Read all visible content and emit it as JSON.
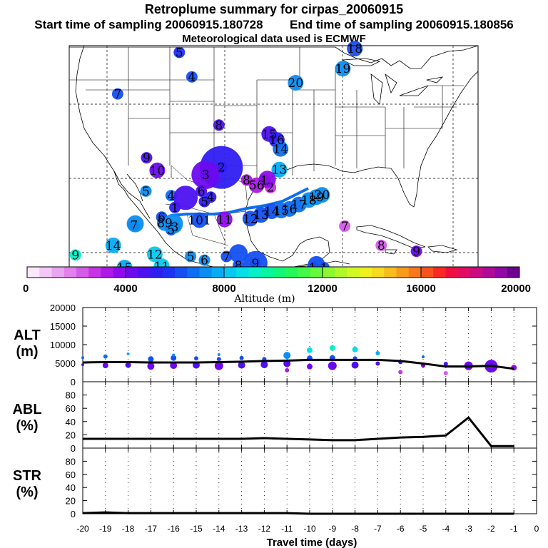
{
  "header": {
    "title": "Retroplume summary for cirpas_20060915",
    "start_label": "Start time of sampling 20060915.180728",
    "end_label": "End time of sampling 20060915.180856",
    "met_label": "Meteorological data used is ECMWF"
  },
  "colorbar": {
    "ticks": [
      "0",
      "4000",
      "8000",
      "12000",
      "16000",
      "20000"
    ],
    "label": "Altitude (m)",
    "range": [
      0,
      20000
    ],
    "colors": [
      "#fbe8fb",
      "#f4c8f6",
      "#eaa5f1",
      "#e081ed",
      "#d45ce9",
      "#c733e6",
      "#ad19e6",
      "#8e0ce9",
      "#6c0aee",
      "#4d11f0",
      "#2f1ef2",
      "#1d32f2",
      "#1450f0",
      "#0d6ef0",
      "#0a8ef2",
      "#08acf2",
      "#07c8f0",
      "#06dfe8",
      "#06f0c8",
      "#08f6a0",
      "#10f878",
      "#24f858",
      "#44f848",
      "#68f83c",
      "#8cf832",
      "#b0f82a",
      "#d2f824",
      "#eef020",
      "#f8da1e",
      "#f8bc1c",
      "#f89a1a",
      "#f8781c",
      "#f8541e",
      "#f82a24",
      "#f01040",
      "#e20c62",
      "#cc0a82",
      "#b00a98",
      "#9208a8",
      "#6c0490"
    ]
  },
  "map": {
    "labels": [
      {
        "t": "5",
        "lon": -112.5,
        "lat": 48.1,
        "c": "#1d32f2"
      },
      {
        "t": "4",
        "lon": -110.5,
        "lat": 44.8,
        "c": "#1450f0"
      },
      {
        "t": "18",
        "lon": -84.6,
        "lat": 48.6,
        "c": "#1450f0"
      },
      {
        "t": "19",
        "lon": -86.5,
        "lat": 45.9,
        "c": "#0a8ef2"
      },
      {
        "t": "20",
        "lon": -94,
        "lat": 44,
        "c": "#0a8ef2"
      },
      {
        "t": "7",
        "lon": -122.3,
        "lat": 42.5,
        "c": "#1450f0"
      },
      {
        "t": "8",
        "lon": -106.2,
        "lat": 38.3,
        "c": "#4d11f0"
      },
      {
        "t": "15",
        "lon": -98.2,
        "lat": 37.1,
        "c": "#4d11f0"
      },
      {
        "t": "16",
        "lon": -97,
        "lat": 36.3,
        "c": "#2f1ef2"
      },
      {
        "t": "14",
        "lon": -96.4,
        "lat": 35.1,
        "c": "#0d6ef0"
      },
      {
        "t": "13",
        "lon": -96.6,
        "lat": 32.3,
        "c": "#08acf2"
      },
      {
        "t": "9",
        "lon": -117.7,
        "lat": 33.9,
        "c": "#4d11f0"
      },
      {
        "t": "10",
        "lon": -116,
        "lat": 32.2,
        "c": "#6c0aee"
      },
      {
        "t": "2",
        "lon": -105.8,
        "lat": 32.6,
        "c": "#2f1ef2"
      },
      {
        "t": "3",
        "lon": -108.3,
        "lat": 31.6,
        "c": "#6c0aee"
      },
      {
        "t": "5",
        "lon": -117.8,
        "lat": 29.4,
        "c": "#0a8ef2"
      },
      {
        "t": "4",
        "lon": -113.8,
        "lat": 28.8,
        "c": "#0d6ef0"
      },
      {
        "t": "6",
        "lon": -109,
        "lat": 29.4,
        "c": "#4d11f0"
      },
      {
        "t": "5",
        "lon": -108.5,
        "lat": 28,
        "c": "#2f1ef2"
      },
      {
        "t": "4",
        "lon": -107.5,
        "lat": 28.6,
        "c": "#2f1ef2"
      },
      {
        "t": "8",
        "lon": -101.8,
        "lat": 30.9,
        "c": "#ad19e6"
      },
      {
        "t": "56",
        "lon": -100.2,
        "lat": 30.2,
        "c": "#ad19e6"
      },
      {
        "t": "1",
        "lon": -99,
        "lat": 30.9,
        "c": "#8e0ce9"
      },
      {
        "t": "2",
        "lon": -98,
        "lat": 29.9,
        "c": "#c733e6"
      },
      {
        "t": "7",
        "lon": -119.7,
        "lat": 24.8,
        "c": "#1450f0"
      },
      {
        "t": "89",
        "lon": -114.8,
        "lat": 25.1,
        "c": "#0a8ef2"
      },
      {
        "t": "101",
        "lon": -109.3,
        "lat": 25.5,
        "c": "#1450f0"
      },
      {
        "t": "11",
        "lon": -105.3,
        "lat": 25.6,
        "c": "#8e0ce9"
      },
      {
        "t": "12",
        "lon": -101.2,
        "lat": 25.7,
        "c": "#1450f0"
      },
      {
        "t": "13",
        "lon": -99.5,
        "lat": 26.2,
        "c": "#1450f0"
      },
      {
        "t": "14",
        "lon": -97.8,
        "lat": 26.7,
        "c": "#1450f0"
      },
      {
        "t": "15",
        "lon": -96.3,
        "lat": 26.8,
        "c": "#0d6ef0"
      },
      {
        "t": "16",
        "lon": -95,
        "lat": 27,
        "c": "#0d6ef0"
      },
      {
        "t": "17",
        "lon": -93.5,
        "lat": 27.6,
        "c": "#0d6ef0"
      },
      {
        "t": "18",
        "lon": -91.9,
        "lat": 28.2,
        "c": "#0a8ef2"
      },
      {
        "t": "19",
        "lon": -90.7,
        "lat": 28.6,
        "c": "#0a8ef2"
      },
      {
        "t": "20",
        "lon": -89.8,
        "lat": 28.9,
        "c": "#0a8ef2"
      },
      {
        "t": "6",
        "lon": -115.3,
        "lat": 25.9,
        "c": "#1450f0"
      },
      {
        "t": "1",
        "lon": -113.2,
        "lat": 27.2,
        "c": "#2f1ef2"
      },
      {
        "t": "5",
        "lon": -113.8,
        "lat": 24.2,
        "c": "#1450f0"
      },
      {
        "t": "3",
        "lon": -113.2,
        "lat": 24.6,
        "c": "#1450f0"
      },
      {
        "t": "7",
        "lon": -86.2,
        "lat": 24.7,
        "c": "#d45ce9"
      },
      {
        "t": "8",
        "lon": -80.4,
        "lat": 22.1,
        "c": "#d45ce9"
      },
      {
        "t": "9",
        "lon": -74.8,
        "lat": 21.3,
        "c": "#6c0aee"
      },
      {
        "t": "14",
        "lon": -123,
        "lat": 22.1,
        "c": "#08acf2"
      },
      {
        "t": "12",
        "lon": -116.4,
        "lat": 20.9,
        "c": "#07c8f0"
      },
      {
        "t": "15",
        "lon": -121.2,
        "lat": 19.1,
        "c": "#08acf2"
      },
      {
        "t": "11",
        "lon": -115.3,
        "lat": 19.3,
        "c": "#07c8f0"
      },
      {
        "t": "9",
        "lon": -129,
        "lat": 20.8,
        "c": "#06f0c8"
      },
      {
        "t": "5",
        "lon": -110.7,
        "lat": 20.6,
        "c": "#0a8ef2"
      },
      {
        "t": "6",
        "lon": -108.5,
        "lat": 20.1,
        "c": "#0a8ef2"
      },
      {
        "t": "7",
        "lon": -105,
        "lat": 20.6,
        "c": "#1450f0"
      },
      {
        "t": "8",
        "lon": -103.1,
        "lat": 19.4,
        "c": "#1450f0"
      },
      {
        "t": "9",
        "lon": -100.4,
        "lat": 19.7,
        "c": "#1450f0"
      },
      {
        "t": "1",
        "lon": -91.3,
        "lat": 19.1,
        "c": "#1450f0"
      },
      {
        "t": "1",
        "lon": -89.5,
        "lat": 19.1,
        "c": "#1450f0"
      }
    ]
  },
  "chart_data": [
    {
      "type": "scatter",
      "name": "ALT",
      "ylabel": "ALT (m)",
      "ylabel_lines": [
        "ALT",
        "(m)"
      ],
      "ylim": [
        0,
        20000
      ],
      "yticks": [
        "0",
        "5000",
        "10000",
        "15000",
        "20000"
      ],
      "xlim": [
        -20,
        0
      ],
      "line": {
        "x": [
          -20,
          -19,
          -18,
          -17,
          -16,
          -15,
          -14,
          -13,
          -12,
          -11,
          -10,
          -9,
          -8,
          -7,
          -6,
          -5,
          -4,
          -3,
          -2,
          -1
        ],
        "y": [
          5200,
          5300,
          5300,
          5200,
          5200,
          5200,
          5300,
          5400,
          5600,
          5700,
          5900,
          5900,
          5900,
          5900,
          5600,
          4900,
          4100,
          4100,
          4300,
          3500
        ]
      },
      "points": [
        [
          -20,
          6500,
          2
        ],
        [
          -20,
          4600,
          2
        ],
        [
          -19,
          6800,
          3
        ],
        [
          -19,
          4400,
          4
        ],
        [
          -18,
          7500,
          2
        ],
        [
          -18,
          4500,
          4
        ],
        [
          -17,
          6100,
          4
        ],
        [
          -17,
          4200,
          5
        ],
        [
          -16,
          6400,
          4
        ],
        [
          -16,
          4400,
          5
        ],
        [
          -16,
          7200,
          2
        ],
        [
          -15,
          4500,
          5
        ],
        [
          -15,
          6300,
          3
        ],
        [
          -14,
          6100,
          3
        ],
        [
          -14,
          4300,
          6
        ],
        [
          -14,
          7300,
          2
        ],
        [
          -13,
          6400,
          3
        ],
        [
          -13,
          4500,
          5
        ],
        [
          -12,
          4600,
          5
        ],
        [
          -12,
          6100,
          3
        ],
        [
          -11,
          7100,
          5
        ],
        [
          -11,
          4900,
          5
        ],
        [
          -11,
          3100,
          3
        ],
        [
          -10,
          8500,
          4
        ],
        [
          -10,
          6300,
          4
        ],
        [
          -10,
          4100,
          4
        ],
        [
          -9,
          9100,
          4
        ],
        [
          -9,
          6400,
          4
        ],
        [
          -9,
          4300,
          6
        ],
        [
          -8,
          8700,
          4
        ],
        [
          -8,
          6300,
          3
        ],
        [
          -8,
          4500,
          5
        ],
        [
          -7,
          7700,
          3
        ],
        [
          -7,
          4900,
          3
        ],
        [
          -6,
          5300,
          3
        ],
        [
          -6,
          2600,
          3
        ],
        [
          -5,
          6700,
          2
        ],
        [
          -5,
          4400,
          3
        ],
        [
          -4,
          4800,
          3
        ],
        [
          -4,
          2300,
          3
        ],
        [
          -3,
          4300,
          6
        ],
        [
          -2,
          4200,
          9
        ],
        [
          -1,
          3800,
          4
        ]
      ]
    },
    {
      "type": "line",
      "name": "ABL",
      "ylabel": "ABL (%)",
      "ylabel_lines": [
        "ABL",
        "(%)"
      ],
      "ylim": [
        0,
        100
      ],
      "yticks": [
        "0",
        "20",
        "40",
        "60",
        "80"
      ],
      "x": [
        -20,
        -19,
        -18,
        -17,
        -16,
        -15,
        -14,
        -13,
        -12,
        -11,
        -10,
        -9,
        -8,
        -7,
        -6,
        -5,
        -4,
        -3,
        -2,
        -1
      ],
      "y": [
        14,
        14,
        14,
        14,
        14,
        14,
        14,
        14,
        15,
        14,
        13,
        12,
        12,
        14,
        16,
        17,
        19,
        46,
        3,
        3
      ]
    },
    {
      "type": "line",
      "name": "STR",
      "ylabel": "STR (%)",
      "ylabel_lines": [
        "STR",
        "(%)"
      ],
      "ylim": [
        0,
        100
      ],
      "yticks": [
        "0",
        "20",
        "40",
        "60",
        "80"
      ],
      "x": [
        -20,
        -19,
        -18,
        -17,
        -16,
        -15,
        -14,
        -13,
        -12,
        -11,
        -10,
        -9,
        -8,
        -7,
        -6,
        -5,
        -4,
        -3,
        -2,
        -1
      ],
      "y": [
        1,
        2,
        1,
        1,
        1,
        1,
        1,
        1,
        1,
        1,
        0,
        0,
        0,
        0,
        0,
        0,
        0,
        0,
        0,
        0
      ]
    }
  ],
  "xaxis": {
    "ticks": [
      "-20",
      "-19",
      "-18",
      "-17",
      "-16",
      "-15",
      "-14",
      "-13",
      "-12",
      "-11",
      "-10",
      "-9",
      "-8",
      "-7",
      "-6",
      "-5",
      "-4",
      "-3",
      "-2",
      "-1",
      "0"
    ],
    "label": "Travel time (days)"
  }
}
